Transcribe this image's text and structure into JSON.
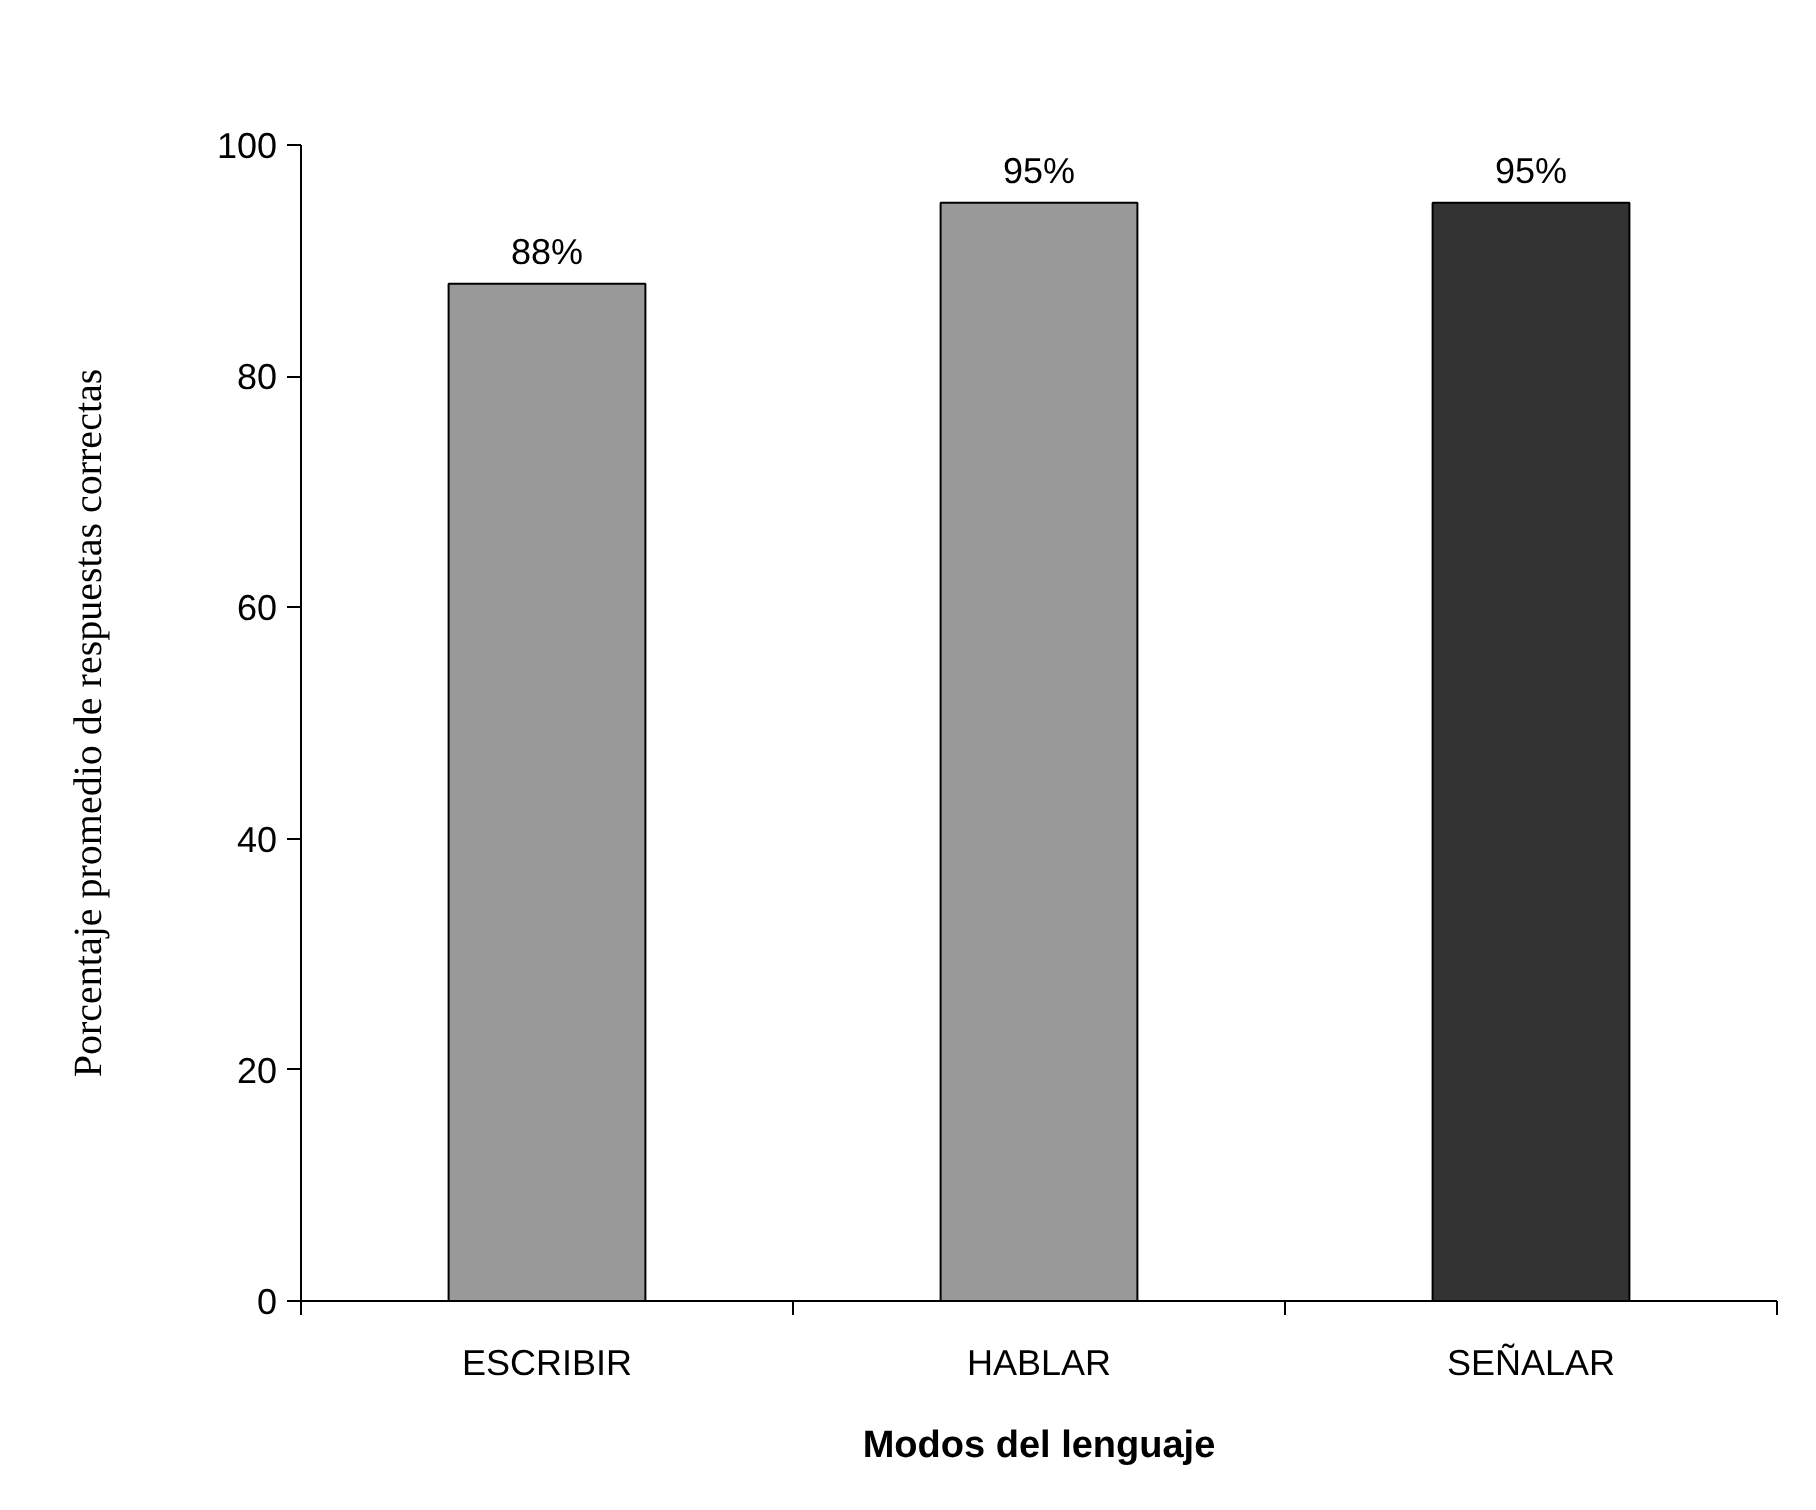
{
  "chart_data": {
    "type": "bar",
    "xlabel": "Modos del lenguaje",
    "ylabel": "Porcentaje promedio de respuestas correctas",
    "categories": [
      "ESCRIBIR",
      "HABLAR",
      "SEÑALAR"
    ],
    "values": [
      88,
      95,
      95
    ],
    "colors": [
      "#999999",
      "#999999",
      "#333333"
    ],
    "value_labels": [
      "88%",
      "95%",
      "95%"
    ],
    "ylim": [
      0,
      100
    ],
    "yticks": [
      0,
      20,
      40,
      60,
      80,
      100
    ],
    "grid": false
  }
}
